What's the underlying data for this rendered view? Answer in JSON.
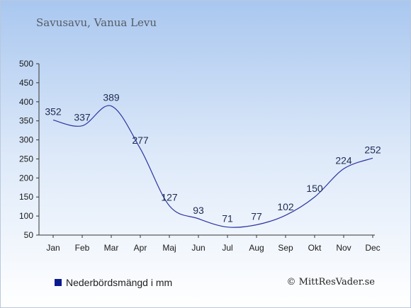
{
  "header": {
    "title": "Savusavu, Vanua Levu"
  },
  "legend": {
    "label": "Nederbördsmängd i mm",
    "color": "#0a1a8f"
  },
  "credit": {
    "text": "© MittResVader.se"
  },
  "colors": {
    "line": "#2b35a0",
    "axis": "#333333"
  },
  "chart_data": {
    "type": "line",
    "title": "Savusavu, Vanua Levu",
    "xlabel": "",
    "ylabel": "",
    "categories": [
      "Jan",
      "Feb",
      "Mar",
      "Apr",
      "Maj",
      "Jun",
      "Jul",
      "Aug",
      "Sep",
      "Okt",
      "Nov",
      "Dec"
    ],
    "series": [
      {
        "name": "Nederbördsmängd i mm",
        "values": [
          352,
          337,
          389,
          277,
          127,
          93,
          71,
          77,
          102,
          150,
          224,
          252
        ]
      }
    ],
    "ylim": [
      50,
      500
    ],
    "yticks": [
      50,
      100,
      150,
      200,
      250,
      300,
      350,
      400,
      450,
      500
    ],
    "grid": false,
    "legend_position": "bottom-left"
  }
}
